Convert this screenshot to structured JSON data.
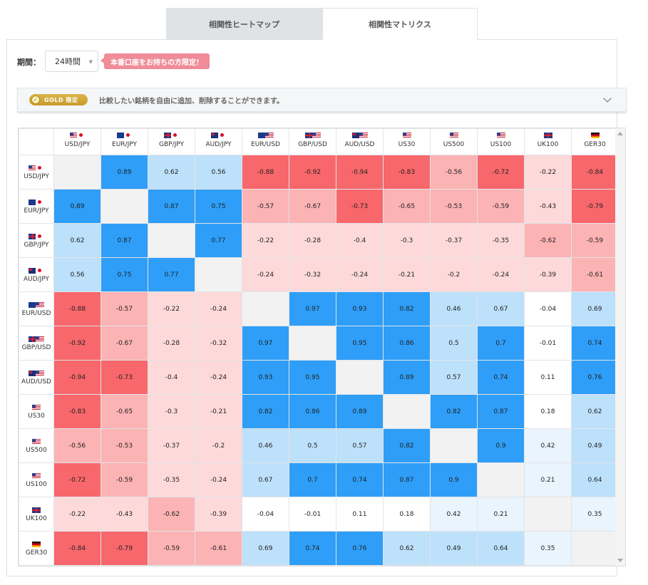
{
  "tabs": {
    "heatmap": "相関性ヒートマップ",
    "matrix": "相関性マトリクス"
  },
  "period": {
    "label": "期間：",
    "value": "24時間"
  },
  "promo": "本番口座をお持ちの方限定！",
  "notice": {
    "badge_text": "GOLD",
    "badge_sub": "限定",
    "text": "比較したい銘柄を自由に追加、削除することができます。"
  },
  "colors": {
    "pos_strong": "#2e9ef8",
    "pos_mid": "#bde0fb",
    "pos_light": "#e9f4fd",
    "neg_strong": "#f8676b",
    "neg_mid": "#fcb3b4",
    "neg_light": "#fdd9da",
    "neutral": "#ffffff",
    "diagonal": "#f2f2f2"
  },
  "instruments": [
    {
      "label": "USD/JPY",
      "flag1": "us",
      "flag2": "jp"
    },
    {
      "label": "EUR/JPY",
      "flag1": "eu",
      "flag2": "jp"
    },
    {
      "label": "GBP/JPY",
      "flag1": "gb",
      "flag2": "jp"
    },
    {
      "label": "AUD/JPY",
      "flag1": "au",
      "flag2": "jp"
    },
    {
      "label": "EUR/USD",
      "flag1": "eu",
      "flag2": "us"
    },
    {
      "label": "GBP/USD",
      "flag1": "gb",
      "flag2": "us"
    },
    {
      "label": "AUD/USD",
      "flag1": "au",
      "flag2": "us"
    },
    {
      "label": "US30",
      "flag1": "us",
      "flag2": ""
    },
    {
      "label": "US500",
      "flag1": "us",
      "flag2": ""
    },
    {
      "label": "US100",
      "flag1": "us",
      "flag2": ""
    },
    {
      "label": "UK100",
      "flag1": "gb",
      "flag2": ""
    },
    {
      "label": "GER30",
      "flag1": "de",
      "flag2": ""
    }
  ],
  "matrix": [
    [
      "",
      "0.89",
      "0.62",
      "0.56",
      "-0.88",
      "-0.92",
      "-0.94",
      "-0.83",
      "-0.56",
      "-0.72",
      "-0.22",
      "-0.84"
    ],
    [
      "0.89",
      "",
      "0.87",
      "0.75",
      "-0.57",
      "-0.67",
      "-0.73",
      "-0.65",
      "-0.53",
      "-0.59",
      "-0.43",
      "-0.79"
    ],
    [
      "0.62",
      "0.87",
      "",
      "0.77",
      "-0.22",
      "-0.28",
      "-0.4",
      "-0.3",
      "-0.37",
      "-0.35",
      "-0.62",
      "-0.59"
    ],
    [
      "0.56",
      "0.75",
      "0.77",
      "",
      "-0.24",
      "-0.32",
      "-0.24",
      "-0.21",
      "-0.2",
      "-0.24",
      "-0.39",
      "-0.61"
    ],
    [
      "-0.88",
      "-0.57",
      "-0.22",
      "-0.24",
      "",
      "0.97",
      "0.93",
      "0.82",
      "0.46",
      "0.67",
      "-0.04",
      "0.69"
    ],
    [
      "-0.92",
      "-0.67",
      "-0.28",
      "-0.32",
      "0.97",
      "",
      "0.95",
      "0.86",
      "0.5",
      "0.7",
      "-0.01",
      "0.74"
    ],
    [
      "-0.94",
      "-0.73",
      "-0.4",
      "-0.24",
      "0.93",
      "0.95",
      "",
      "0.89",
      "0.57",
      "0.74",
      "0.11",
      "0.76"
    ],
    [
      "-0.83",
      "-0.65",
      "-0.3",
      "-0.21",
      "0.82",
      "0.86",
      "0.89",
      "",
      "0.82",
      "0.87",
      "0.18",
      "0.62"
    ],
    [
      "-0.56",
      "-0.53",
      "-0.37",
      "-0.2",
      "0.46",
      "0.5",
      "0.57",
      "0.82",
      "",
      "0.9",
      "0.42",
      "0.49"
    ],
    [
      "-0.72",
      "-0.59",
      "-0.35",
      "-0.24",
      "0.67",
      "0.7",
      "0.74",
      "0.87",
      "0.9",
      "",
      "0.21",
      "0.64"
    ],
    [
      "-0.22",
      "-0.43",
      "-0.62",
      "-0.39",
      "-0.04",
      "-0.01",
      "0.11",
      "0.18",
      "0.42",
      "0.21",
      "",
      "0.35"
    ],
    [
      "-0.84",
      "-0.79",
      "-0.59",
      "-0.61",
      "0.69",
      "0.74",
      "0.76",
      "0.62",
      "0.49",
      "0.64",
      "0.35",
      ""
    ]
  ]
}
